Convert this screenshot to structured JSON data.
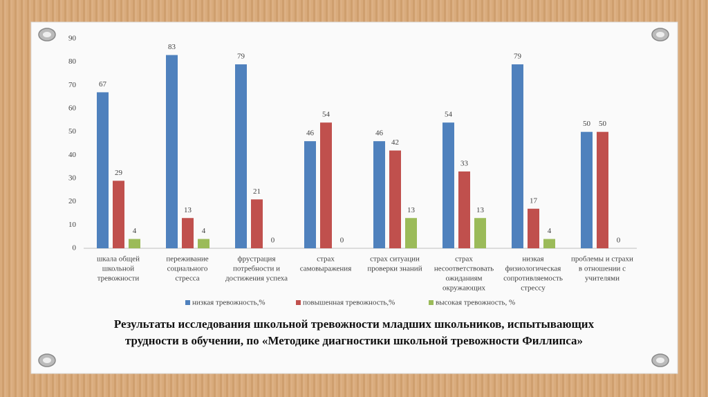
{
  "chart_data": {
    "type": "bar",
    "title": [
      "Результаты исследования школьной тревожности младших школьников, испытывающих",
      "трудности в обучении, по «Методике диагностики школьной тревожности Филлипса»"
    ],
    "categories": [
      [
        "шкала общей",
        "школьной",
        "тревожности"
      ],
      [
        "переживание",
        "социального",
        "стресса"
      ],
      [
        "фрустрация",
        "потребности и",
        "достижения успеха"
      ],
      [
        "страх",
        "самовыражения"
      ],
      [
        "страх ситуации",
        "проверки знаний"
      ],
      [
        "страх",
        "несоответствовать",
        "ожиданиям",
        "окружающих"
      ],
      [
        "низкая",
        "физиологическая",
        "сопротивляемость",
        "стрессу"
      ],
      [
        "проблемы и страхи",
        "в отношении с",
        "учителями"
      ]
    ],
    "series": [
      {
        "name": "низкая тревожность,%",
        "color": "#4f81bd",
        "values": [
          67,
          83,
          79,
          46,
          46,
          54,
          79,
          50
        ]
      },
      {
        "name": "повышенная тревожность,%",
        "color": "#c0504d",
        "values": [
          29,
          13,
          21,
          54,
          42,
          33,
          17,
          50
        ]
      },
      {
        "name": "высокая тревожность, %",
        "color": "#9bbb59",
        "values": [
          4,
          4,
          0,
          0,
          13,
          13,
          4,
          0
        ]
      }
    ],
    "ylim": [
      0,
      90
    ],
    "yticks": [
      0,
      10,
      20,
      30,
      40,
      50,
      60,
      70,
      80,
      90
    ],
    "grid": false,
    "legend": "bottom"
  }
}
